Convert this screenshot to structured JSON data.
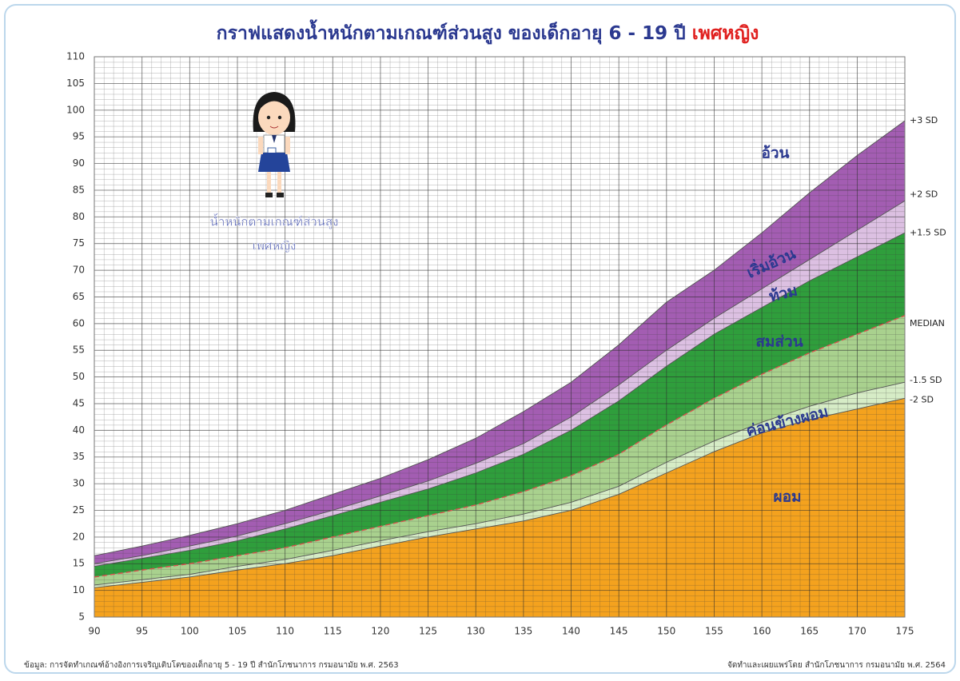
{
  "chart_data": {
    "type": "line",
    "title": "กราฟแสดงน้ำหนักตามเกณฑ์ส่วนสูง ของเด็กอายุ 6 - 19 ปี",
    "title_emphasis": "เพศหญิง",
    "figure_caption": [
      "น้ำหนักตามเกณฑ์ส่วนสูง",
      "เพศหญิง"
    ],
    "x": [
      90,
      95,
      100,
      105,
      110,
      115,
      120,
      125,
      130,
      135,
      140,
      145,
      150,
      155,
      160,
      165,
      170,
      175
    ],
    "series": [
      {
        "name": "-2 SD",
        "color": "#555555",
        "values": [
          10.5,
          11.5,
          12.5,
          13.8,
          15,
          16.5,
          18.3,
          20,
          21.5,
          23,
          25,
          28,
          32,
          36,
          39.5,
          42,
          44,
          46
        ]
      },
      {
        "name": "-1.5 SD",
        "color": "#555555",
        "values": [
          11,
          12,
          13,
          14.5,
          15.8,
          17.5,
          19.3,
          21,
          22.5,
          24.3,
          26.5,
          29.5,
          34,
          38,
          41.5,
          44.5,
          47,
          49
        ]
      },
      {
        "name": "MEDIAN",
        "color": "#d9534f",
        "values": [
          12.5,
          13.8,
          15,
          16.5,
          18,
          20,
          22,
          24,
          26,
          28.5,
          31.5,
          35.5,
          41,
          46,
          50.5,
          54.5,
          58,
          61.5
        ]
      },
      {
        "name": "+1.5 SD",
        "color": "#555555",
        "values": [
          14.5,
          16,
          17.5,
          19.3,
          21.5,
          24,
          26.5,
          29,
          32,
          35.5,
          40,
          45.5,
          52,
          58,
          63,
          68,
          72.5,
          77
        ]
      },
      {
        "name": "+2 SD",
        "color": "#555555",
        "values": [
          15,
          16.5,
          18.3,
          20.2,
          22.5,
          25,
          27.7,
          30.5,
          33.8,
          37.5,
          42.5,
          48.5,
          55,
          61,
          66.5,
          72,
          77.5,
          83
        ]
      },
      {
        "name": "+3 SD",
        "color": "#555555",
        "values": [
          16.5,
          18.3,
          20.3,
          22.5,
          25,
          28,
          31,
          34.5,
          38.5,
          43.5,
          49,
          56,
          64,
          70,
          77,
          84.5,
          91.5,
          98
        ]
      }
    ],
    "bands": [
      {
        "label": "ผอม",
        "color": "#f4a21e"
      },
      {
        "label": "ค่อนข้างผอม",
        "color": "#d6ecc6"
      },
      {
        "label": "สมส่วน",
        "color": "#a9d18e"
      },
      {
        "label": "ท้วม",
        "color": "#2f9e3c"
      },
      {
        "label": "เริ่มอ้วน",
        "color": "#dcc0e2"
      },
      {
        "label": "อ้วน",
        "color": "#a35db2"
      }
    ],
    "xlim": [
      90,
      175
    ],
    "ylim": [
      5,
      110
    ],
    "xticks": [
      90,
      95,
      100,
      105,
      110,
      115,
      120,
      125,
      130,
      135,
      140,
      145,
      150,
      155,
      160,
      165,
      170,
      175
    ],
    "yticks": [
      5,
      10,
      15,
      20,
      25,
      30,
      35,
      40,
      45,
      50,
      55,
      60,
      65,
      70,
      75,
      80,
      85,
      90,
      95,
      100,
      105,
      110
    ],
    "grid": true,
    "source": "ข้อมูล: การจัดทำเกณฑ์อ้างอิงการเจริญเติบโตของเด็กอายุ 5 - 19 ปี  สำนักโภชนาการ กรมอนามัย พ.ศ. 2563",
    "credit": "จัดทำและเผยแพร่โดย สำนักโภชนาการ กรมอนามัย พ.ศ. 2564"
  }
}
